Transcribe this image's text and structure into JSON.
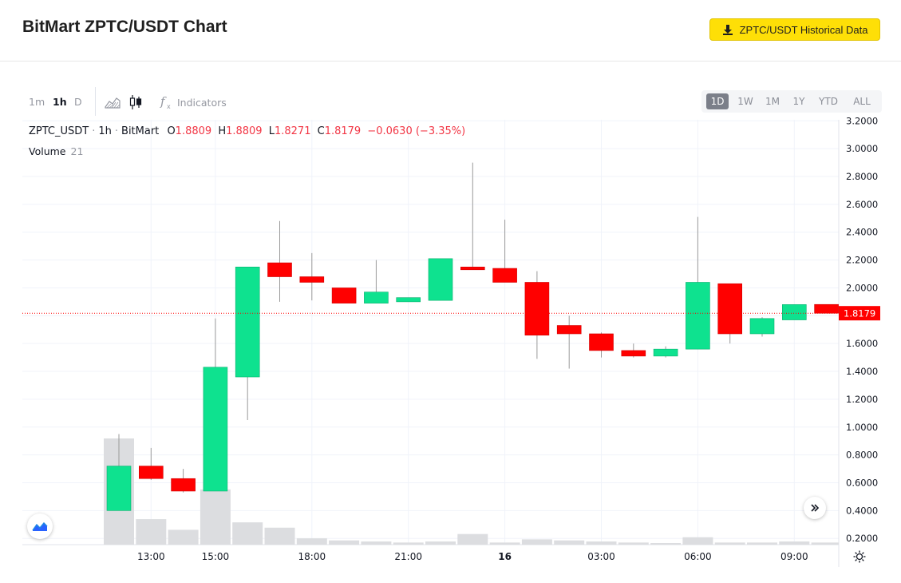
{
  "header": {
    "title": "BitMart ZPTC/USDT Chart",
    "historical_button": "ZPTC/USDT Historical Data"
  },
  "toolbar": {
    "intervals": [
      "1m",
      "1h",
      "D"
    ],
    "active_interval": "1h",
    "indicators_label": "Indicators",
    "ranges": [
      "1D",
      "1W",
      "1M",
      "1Y",
      "YTD",
      "ALL"
    ],
    "active_range": "1D"
  },
  "legend": {
    "symbol": "ZPTC_USDT",
    "interval": "1h",
    "exchange": "BitMart",
    "o_label": "O",
    "o": "1.8809",
    "h_label": "H",
    "h": "1.8809",
    "l_label": "L",
    "l": "1.8271",
    "c_label": "C",
    "c": "1.8179",
    "change": "−0.0630 (−3.35%)",
    "volume_label": "Volume",
    "volume_value": "21"
  },
  "colors": {
    "up": "#0ee28f",
    "down": "#ff0000",
    "volume": "#dcdde0",
    "accent": "#fedf07"
  },
  "chart_data": {
    "type": "candlestick",
    "x": [
      "12:00",
      "13:00",
      "14:00",
      "15:00",
      "16:00",
      "17:00",
      "18:00",
      "19:00",
      "20:00",
      "21:00",
      "22:00",
      "23:00",
      "16",
      "01:00",
      "02:00",
      "03:00",
      "04:00",
      "05:00",
      "06:00",
      "07:00",
      "08:00",
      "09:00",
      "10:00"
    ],
    "open": [
      0.4,
      0.72,
      0.63,
      0.54,
      1.36,
      2.18,
      2.08,
      2.0,
      1.89,
      1.9,
      1.91,
      2.15,
      2.14,
      2.04,
      1.73,
      1.67,
      1.55,
      1.51,
      1.56,
      2.03,
      1.67,
      1.77,
      1.8809
    ],
    "high": [
      0.95,
      0.85,
      0.7,
      1.78,
      2.15,
      2.48,
      2.25,
      2.0,
      2.2,
      1.93,
      2.2,
      2.9,
      2.49,
      2.12,
      1.8,
      1.68,
      1.6,
      1.58,
      2.51,
      2.03,
      1.79,
      1.88,
      1.8809
    ],
    "low": [
      0.4,
      0.62,
      0.53,
      0.54,
      1.05,
      1.9,
      1.91,
      1.89,
      1.89,
      1.9,
      1.91,
      2.14,
      2.04,
      1.49,
      1.42,
      1.5,
      1.5,
      1.5,
      1.56,
      1.6,
      1.65,
      1.77,
      1.8271
    ],
    "close": [
      0.72,
      0.63,
      0.54,
      1.43,
      2.15,
      2.08,
      2.04,
      1.89,
      1.97,
      1.93,
      2.21,
      2.13,
      2.04,
      1.66,
      1.67,
      1.55,
      1.51,
      1.56,
      2.04,
      1.67,
      1.78,
      1.88,
      1.8179
    ],
    "volume_relative": [
      1.0,
      0.24,
      0.14,
      0.52,
      0.21,
      0.16,
      0.06,
      0.04,
      0.03,
      0.02,
      0.03,
      0.1,
      0.02,
      0.05,
      0.04,
      0.03,
      0.02,
      0.01,
      0.07,
      0.02,
      0.02,
      0.03,
      0.02
    ],
    "last_price": "1.8179",
    "y_ticks": [
      "0.2000",
      "0.4000",
      "0.6000",
      "0.8000",
      "1.0000",
      "1.2000",
      "1.4000",
      "1.6000",
      "1.8000",
      "2.0000",
      "2.2000",
      "2.4000",
      "2.6000",
      "2.8000",
      "3.0000",
      "3.2000"
    ],
    "ylim": [
      0.1,
      3.2
    ],
    "x_tick_labels": [
      "13:00",
      "15:00",
      "18:00",
      "21:00",
      "16",
      "03:00",
      "06:00",
      "09:00"
    ],
    "x_tick_index": [
      1,
      3,
      6,
      9,
      12,
      15,
      18,
      21
    ],
    "grid": true
  }
}
